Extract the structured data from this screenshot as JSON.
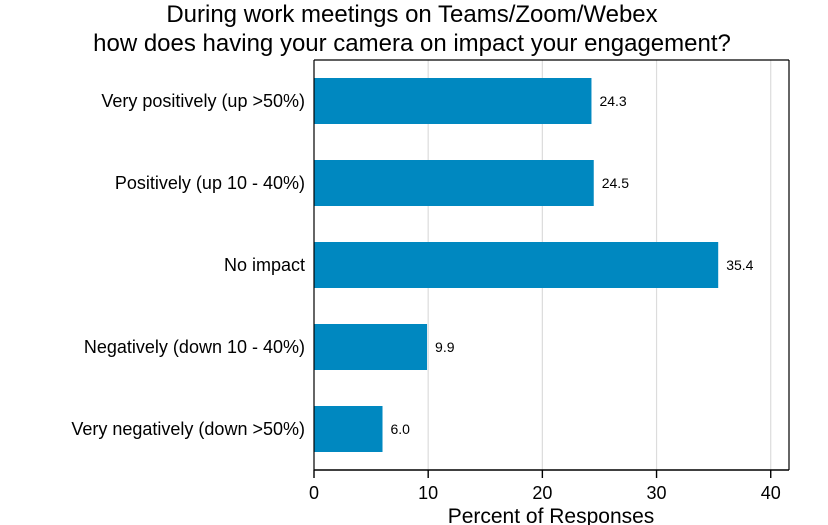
{
  "chart_data": {
    "type": "bar",
    "orientation": "horizontal",
    "title": [
      "During work meetings on Teams/Zoom/Webex",
      "how does having your camera on impact your engagement?"
    ],
    "categories": [
      "Very positively (up >50%)",
      "Positively (up 10 - 40%)",
      "No impact",
      "Negatively (down 10 - 40%)",
      "Very negatively (down >50%)"
    ],
    "values": [
      24.3,
      24.5,
      35.4,
      9.9,
      6.0
    ],
    "value_labels": [
      "24.3",
      "24.5",
      "35.4",
      "9.9",
      "6.0"
    ],
    "xlabel": "Percent of Responses",
    "ylabel": "",
    "xlim": [
      0,
      41.6
    ],
    "xticks": [
      0,
      10,
      20,
      30,
      40
    ],
    "grid": true,
    "bar_color": "#0088c0",
    "grid_color": "#dcdcdc"
  }
}
